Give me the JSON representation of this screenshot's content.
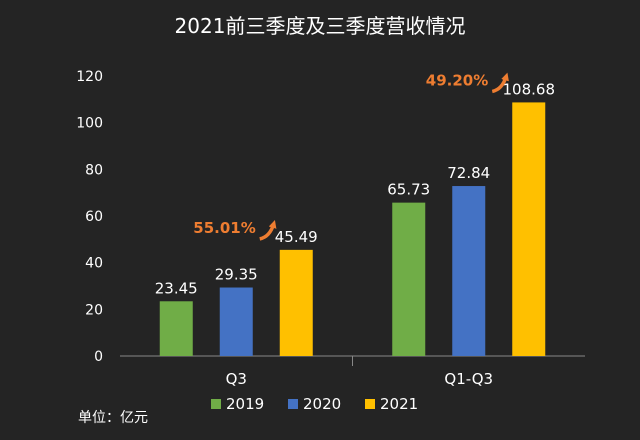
{
  "chart_data": {
    "type": "bar",
    "title": "2021前三季度及三季度营收情况",
    "unit_note": "单位：亿元",
    "categories": [
      "Q3",
      "Q1-Q3"
    ],
    "series": [
      {
        "name": "2019",
        "color": "#70ad47",
        "values": [
          23.45,
          65.73
        ]
      },
      {
        "name": "2020",
        "color": "#4472c4",
        "values": [
          29.35,
          72.84
        ]
      },
      {
        "name": "2021",
        "color": "#ffc000",
        "values": [
          45.49,
          108.68
        ]
      }
    ],
    "value_labels": [
      [
        "23.45",
        "65.73"
      ],
      [
        "29.35",
        "72.84"
      ],
      [
        "45.49",
        "108.68"
      ]
    ],
    "ylim": [
      0,
      120
    ],
    "yticks": [
      0,
      20,
      40,
      60,
      80,
      100,
      120
    ],
    "grid": false,
    "legend_position": "bottom",
    "annotations": [
      {
        "text": "55.01%",
        "category": "Q3",
        "color": "#ee7d31"
      },
      {
        "text": "49.20%",
        "category": "Q1-Q3",
        "color": "#ee7d31"
      }
    ]
  }
}
